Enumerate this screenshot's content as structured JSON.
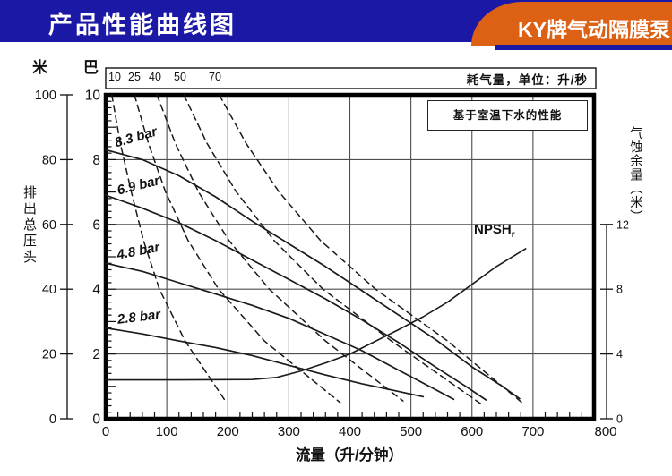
{
  "header": {
    "title": "产品性能曲线图",
    "badge": "KY牌气动隔膜泵"
  },
  "colors": {
    "header_bg": "#1b18a5",
    "badge_bg": "#dc6114",
    "grid": "#4d4d4d",
    "curve": "#1a1a1a"
  },
  "chart_data": {
    "type": "line",
    "title": "产品性能曲线图",
    "note": "基于室温下水的性能",
    "xlabel": "流量（升/分钟）",
    "x_range": [
      0,
      800
    ],
    "x_ticks": [
      0,
      100,
      200,
      300,
      400,
      500,
      600,
      700,
      800
    ],
    "left_axis_unit_m": "米",
    "left_axis_unit_bar": "巴",
    "left_axis_label": "排出总压头",
    "left_m_ticks": [
      100,
      80,
      60,
      40,
      20,
      0
    ],
    "left_bar_ticks": [
      10,
      8,
      6,
      4,
      2,
      0
    ],
    "left_bar_range": [
      0,
      10
    ],
    "right_axis_label": "气蚀余量（米）",
    "right_ticks": [
      12,
      8,
      4,
      0
    ],
    "right_range": [
      0,
      12
    ],
    "grid": "on",
    "air_consumption_label": "耗气量，单位：升/秒",
    "air_values": [
      "10",
      "25",
      "40",
      "50",
      "70"
    ],
    "series": [
      {
        "label": "8.3 bar",
        "style": "solid",
        "unit": "flow_lpm_vs_bar",
        "points": [
          [
            0,
            8.3
          ],
          [
            60,
            8.0
          ],
          [
            120,
            7.5
          ],
          [
            180,
            6.85
          ],
          [
            240,
            6.1
          ],
          [
            300,
            5.4
          ],
          [
            360,
            4.7
          ],
          [
            420,
            3.95
          ],
          [
            480,
            3.2
          ],
          [
            540,
            2.45
          ],
          [
            600,
            1.6
          ],
          [
            650,
            1.0
          ],
          [
            678,
            0.62
          ]
        ]
      },
      {
        "label": "6.9 bar",
        "style": "solid",
        "unit": "flow_lpm_vs_bar",
        "points": [
          [
            0,
            6.9
          ],
          [
            60,
            6.5
          ],
          [
            120,
            6.05
          ],
          [
            180,
            5.5
          ],
          [
            240,
            4.9
          ],
          [
            300,
            4.3
          ],
          [
            360,
            3.7
          ],
          [
            420,
            3.05
          ],
          [
            480,
            2.35
          ],
          [
            540,
            1.6
          ],
          [
            590,
            1.0
          ],
          [
            623,
            0.58
          ]
        ]
      },
      {
        "label": "4.8 bar",
        "style": "solid",
        "unit": "flow_lpm_vs_bar",
        "points": [
          [
            0,
            4.8
          ],
          [
            60,
            4.55
          ],
          [
            120,
            4.2
          ],
          [
            180,
            3.85
          ],
          [
            240,
            3.5
          ],
          [
            300,
            3.1
          ],
          [
            360,
            2.6
          ],
          [
            420,
            2.1
          ],
          [
            480,
            1.5
          ],
          [
            530,
            1.0
          ],
          [
            570,
            0.6
          ]
        ]
      },
      {
        "label": "2.8 bar",
        "style": "solid",
        "unit": "flow_lpm_vs_bar",
        "points": [
          [
            0,
            2.8
          ],
          [
            60,
            2.62
          ],
          [
            120,
            2.4
          ],
          [
            180,
            2.2
          ],
          [
            240,
            1.95
          ],
          [
            300,
            1.65
          ],
          [
            360,
            1.35
          ],
          [
            420,
            1.08
          ],
          [
            470,
            0.88
          ],
          [
            520,
            0.68
          ]
        ]
      }
    ],
    "air_curves": [
      {
        "label": "10",
        "style": "dashed",
        "unit": "flow_lpm_vs_bar",
        "points": [
          [
            10,
            10
          ],
          [
            24,
            8.5
          ],
          [
            42,
            7.0
          ],
          [
            62,
            5.5
          ],
          [
            88,
            4.0
          ],
          [
            130,
            2.4
          ],
          [
            196,
            0.55
          ]
        ]
      },
      {
        "label": "25",
        "style": "dashed",
        "unit": "flow_lpm_vs_bar",
        "points": [
          [
            47,
            10
          ],
          [
            70,
            8.5
          ],
          [
            98,
            7.0
          ],
          [
            135,
            5.5
          ],
          [
            185,
            4.0
          ],
          [
            260,
            2.4
          ],
          [
            384,
            0.5
          ]
        ]
      },
      {
        "label": "40",
        "style": "dashed",
        "unit": "flow_lpm_vs_bar",
        "points": [
          [
            84,
            10
          ],
          [
            114,
            8.5
          ],
          [
            152,
            7.0
          ],
          [
            202,
            5.5
          ],
          [
            268,
            4.0
          ],
          [
            360,
            2.4
          ],
          [
            487,
            0.55
          ]
        ]
      },
      {
        "label": "50",
        "style": "dashed",
        "unit": "flow_lpm_vs_bar",
        "points": [
          [
            128,
            10
          ],
          [
            166,
            8.5
          ],
          [
            214,
            7.0
          ],
          [
            276,
            5.5
          ],
          [
            356,
            4.0
          ],
          [
            468,
            2.4
          ],
          [
            619,
            0.4
          ]
        ]
      },
      {
        "label": "70",
        "style": "dashed",
        "unit": "flow_lpm_vs_bar",
        "points": [
          [
            186,
            10
          ],
          [
            230,
            8.5
          ],
          [
            284,
            7.0
          ],
          [
            352,
            5.5
          ],
          [
            442,
            4.0
          ],
          [
            560,
            2.4
          ],
          [
            685,
            0.45
          ]
        ]
      }
    ],
    "npsh": {
      "label_main": "NPSH",
      "label_sub": "r",
      "style": "solid",
      "unit": "flow_lpm_vs_npsh_m",
      "points": [
        [
          0,
          2.4
        ],
        [
          120,
          2.4
        ],
        [
          240,
          2.42
        ],
        [
          280,
          2.55
        ],
        [
          320,
          2.95
        ],
        [
          360,
          3.45
        ],
        [
          400,
          4.0
        ],
        [
          440,
          4.75
        ],
        [
          480,
          5.5
        ],
        [
          520,
          6.3
        ],
        [
          560,
          7.2
        ],
        [
          600,
          8.3
        ],
        [
          640,
          9.4
        ],
        [
          688,
          10.5
        ]
      ]
    }
  }
}
